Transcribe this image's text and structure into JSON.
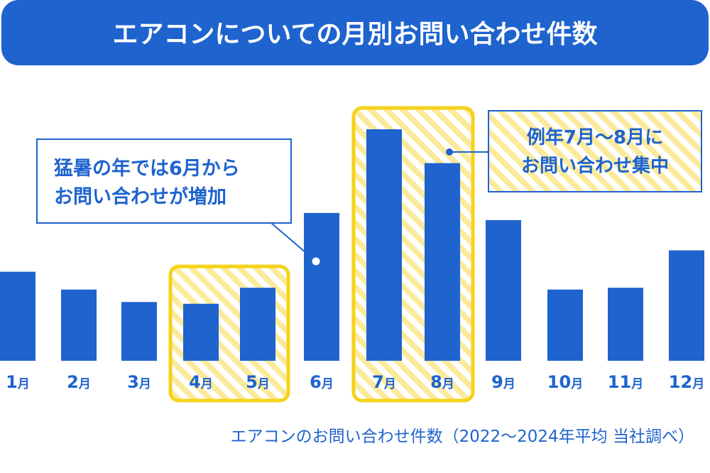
{
  "title": "エアコンについての月別お問い合わせ件数",
  "colors": {
    "title_bg": "#1E63CE",
    "title_text": "#FFFFFF",
    "bar": "#1E63CE",
    "highlight_border": "#F5D21A",
    "highlight_stripe": "#FBEA9B",
    "callout_border": "#1E63CE",
    "callout_text": "#1E63CE",
    "axis_text": "#1E63CE",
    "footnote_text": "#1E63CE"
  },
  "chart_data": {
    "type": "bar",
    "title": "エアコンについての月別お問い合わせ件数",
    "categories": [
      "1月",
      "2月",
      "3月",
      "4月",
      "5月",
      "6月",
      "7月",
      "8月",
      "9月",
      "10月",
      "11月",
      "12月"
    ],
    "values": [
      50,
      40,
      33,
      32,
      41,
      83,
      130,
      111,
      79,
      40,
      41,
      62
    ],
    "ylim": [
      0,
      140
    ],
    "y_axis_visible": false,
    "grid": false,
    "highlighted_groups": [
      [
        "4月",
        "5月"
      ],
      [
        "7月",
        "8月"
      ]
    ],
    "annotations": [
      {
        "lines": [
          "猛暑の年では6月から",
          "お問い合わせが増加"
        ],
        "points_to": "6月",
        "style": "white"
      },
      {
        "lines": [
          "例年7月〜8月に",
          "お問い合わせ集中"
        ],
        "points_to": "8月",
        "style": "striped"
      }
    ],
    "footnote": "エアコンのお問い合わせ件数（2022〜2024年平均 当社調べ）"
  }
}
